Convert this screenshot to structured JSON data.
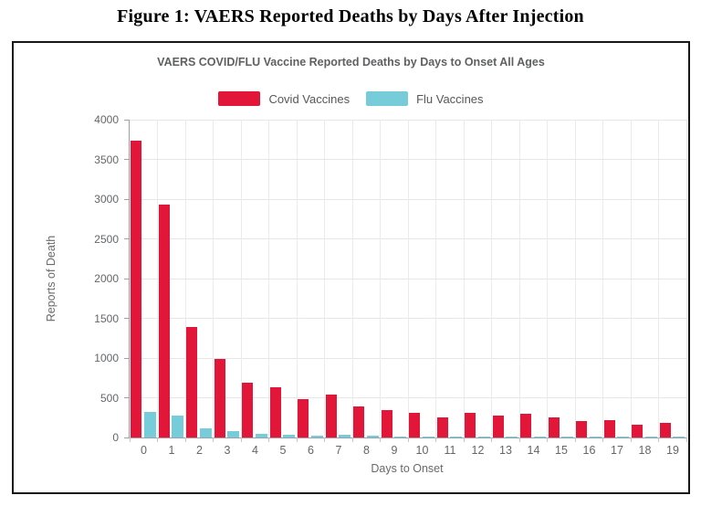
{
  "page": {
    "figure_title": "Figure 1: VAERS Reported Deaths by Days After Injection"
  },
  "chart_data": {
    "type": "bar",
    "title": "VAERS COVID/FLU Vaccine Reported Deaths by Days to Onset All Ages",
    "xlabel": "Days to Onset",
    "ylabel": "Reports of Death",
    "categories": [
      "0",
      "1",
      "2",
      "3",
      "4",
      "5",
      "6",
      "7",
      "8",
      "9",
      "10",
      "11",
      "12",
      "13",
      "14",
      "15",
      "16",
      "17",
      "18",
      "19"
    ],
    "series": [
      {
        "name": "Covid Vaccines",
        "color": "#e11638",
        "values": [
          3740,
          2930,
          1390,
          990,
          690,
          630,
          480,
          540,
          390,
          345,
          310,
          255,
          305,
          275,
          295,
          255,
          210,
          215,
          165,
          180
        ]
      },
      {
        "name": "Flu Vaccines",
        "color": "#76ccd8",
        "values": [
          320,
          275,
          110,
          75,
          45,
          35,
          25,
          35,
          18,
          15,
          12,
          8,
          10,
          10,
          15,
          8,
          6,
          8,
          5,
          8
        ]
      }
    ],
    "ylim": [
      0,
      4000
    ],
    "yticks": [
      0,
      500,
      1000,
      1500,
      2000,
      2500,
      3000,
      3500,
      4000
    ],
    "grid": true,
    "legend_position": "top"
  }
}
